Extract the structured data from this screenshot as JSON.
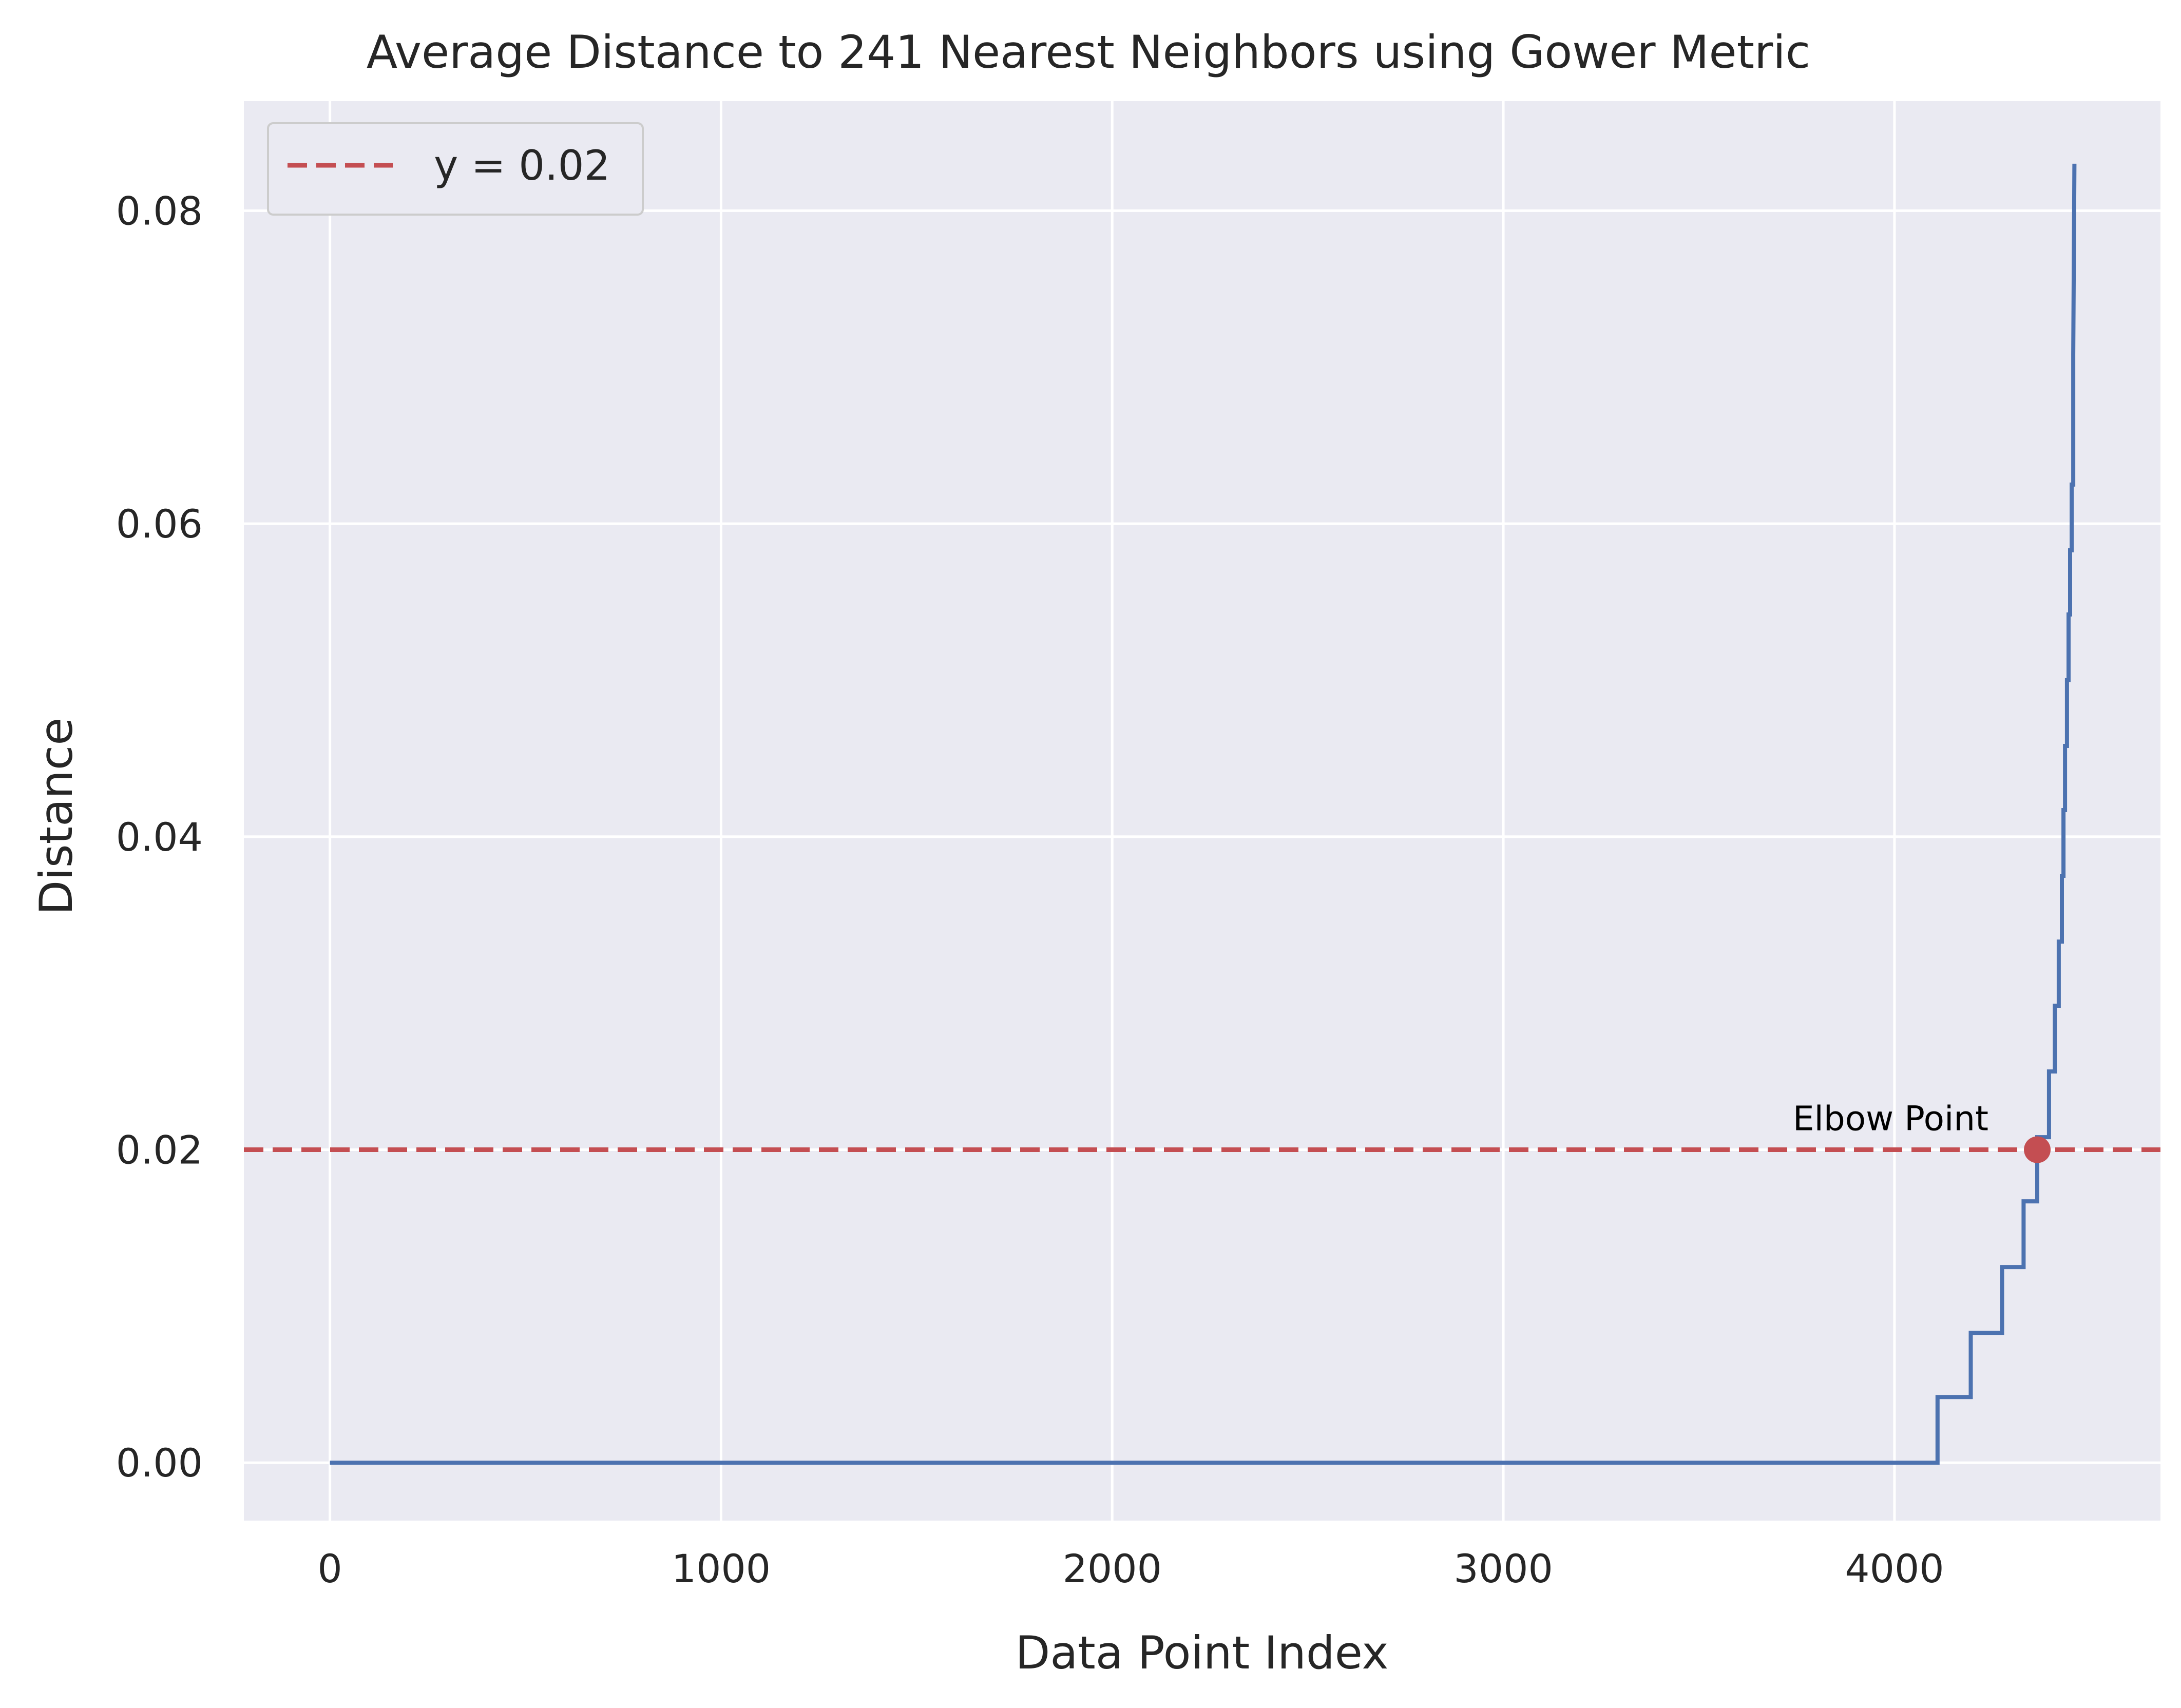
{
  "chart_data": {
    "type": "line",
    "title": "Average Distance to 241 Nearest Neighbors using Gower Metric",
    "xlabel": "Data Point Index",
    "ylabel": "Distance",
    "xlim": [
      -220,
      4680
    ],
    "ylim": [
      -0.0037,
      0.087
    ],
    "xticks": [
      0,
      1000,
      2000,
      3000,
      4000
    ],
    "xtick_labels": [
      "0",
      "1000",
      "2000",
      "3000",
      "4000"
    ],
    "yticks": [
      0.0,
      0.02,
      0.04,
      0.06,
      0.08
    ],
    "ytick_labels": [
      "0.00",
      "0.02",
      "0.04",
      "0.06",
      "0.08"
    ],
    "grid": true,
    "series": [
      {
        "color": "#4c72b0",
        "x": [
          0,
          4110,
          4110,
          4195,
          4195,
          4275,
          4275,
          4330,
          4330,
          4365,
          4365,
          4395,
          4395,
          4410,
          4410,
          4420,
          4420,
          4428,
          4428,
          4432,
          4432,
          4436,
          4436,
          4441,
          4441,
          4445,
          4445,
          4449,
          4449,
          4453,
          4453,
          4457,
          4457,
          4460
        ],
        "y": [
          0.0,
          0.0,
          0.0042,
          0.0042,
          0.0083,
          0.0083,
          0.0125,
          0.0125,
          0.0167,
          0.0167,
          0.0208,
          0.0208,
          0.025,
          0.025,
          0.0292,
          0.0292,
          0.0333,
          0.0333,
          0.0375,
          0.0375,
          0.0417,
          0.0417,
          0.0458,
          0.0458,
          0.05,
          0.05,
          0.0542,
          0.0542,
          0.0583,
          0.0583,
          0.0625,
          0.0625,
          0.0708,
          0.083
        ]
      }
    ],
    "threshold": {
      "y": 0.02,
      "color": "#c44e52",
      "label": "y = 0.02"
    },
    "elbow_point": {
      "x": 4365,
      "y": 0.02,
      "color": "#c44e52",
      "label": "Elbow Point"
    },
    "legend": {
      "position": "top-left",
      "entries": [
        "y = 0.02"
      ]
    }
  }
}
